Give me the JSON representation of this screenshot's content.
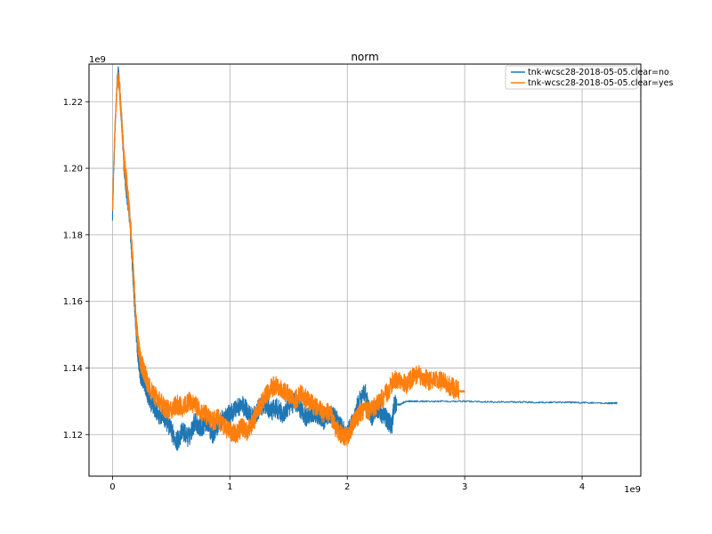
{
  "chart_data": {
    "type": "line",
    "title": "norm",
    "xlabel": "",
    "ylabel": "",
    "x_offset_label": "1e9",
    "y_offset_label": "1e9",
    "xlim": [
      -0.2,
      4.5
    ],
    "ylim": [
      1.1075,
      1.2313
    ],
    "x_ticks": [
      0,
      1,
      2,
      3,
      4
    ],
    "x_tick_labels": [
      "0",
      "1",
      "2",
      "3",
      "4"
    ],
    "y_ticks": [
      1.12,
      1.14,
      1.16,
      1.18,
      1.2,
      1.22
    ],
    "y_tick_labels": [
      "1.12",
      "1.14",
      "1.16",
      "1.18",
      "1.20",
      "1.22"
    ],
    "grid": true,
    "legend_position": "top-right",
    "series": [
      {
        "name": "tnk-wcsc28-2018-05-05.clear=no",
        "color": "#1f77b4",
        "x": [
          0.0,
          0.02,
          0.04,
          0.05,
          0.06,
          0.08,
          0.1,
          0.12,
          0.14,
          0.16,
          0.18,
          0.2,
          0.22,
          0.24,
          0.26,
          0.28,
          0.3,
          0.35,
          0.4,
          0.45,
          0.5,
          0.55,
          0.6,
          0.65,
          0.7,
          0.75,
          0.8,
          0.85,
          0.9,
          0.95,
          1.0,
          1.05,
          1.1,
          1.15,
          1.2,
          1.25,
          1.3,
          1.35,
          1.4,
          1.45,
          1.5,
          1.55,
          1.6,
          1.65,
          1.7,
          1.75,
          1.8,
          1.85,
          1.9,
          1.95,
          2.0,
          2.05,
          2.1,
          2.15,
          2.2,
          2.25,
          2.3,
          2.35,
          2.38,
          2.4,
          2.45,
          2.5,
          2.6,
          2.8,
          3.0,
          3.2,
          3.4,
          3.6,
          3.8,
          4.0,
          4.2,
          4.3
        ],
        "y": [
          1.186,
          1.21,
          1.226,
          1.229,
          1.225,
          1.213,
          1.2,
          1.193,
          1.188,
          1.178,
          1.165,
          1.152,
          1.143,
          1.138,
          1.137,
          1.135,
          1.132,
          1.128,
          1.126,
          1.125,
          1.121,
          1.118,
          1.121,
          1.119,
          1.124,
          1.122,
          1.124,
          1.12,
          1.123,
          1.125,
          1.126,
          1.128,
          1.129,
          1.127,
          1.125,
          1.128,
          1.129,
          1.127,
          1.128,
          1.126,
          1.128,
          1.13,
          1.128,
          1.125,
          1.127,
          1.126,
          1.124,
          1.126,
          1.125,
          1.122,
          1.12,
          1.124,
          1.13,
          1.133,
          1.125,
          1.128,
          1.126,
          1.124,
          1.123,
          1.129,
          1.129,
          1.13,
          1.13,
          1.13,
          1.13,
          1.1298,
          1.1298,
          1.1297,
          1.1297,
          1.1296,
          1.1294,
          1.1295
        ],
        "noise": 0.003
      },
      {
        "name": "tnk-wcsc28-2018-05-05.clear=yes",
        "color": "#ff7f0e",
        "x": [
          0.0,
          0.02,
          0.04,
          0.05,
          0.06,
          0.08,
          0.1,
          0.12,
          0.14,
          0.16,
          0.18,
          0.2,
          0.22,
          0.24,
          0.26,
          0.28,
          0.3,
          0.35,
          0.4,
          0.45,
          0.5,
          0.55,
          0.6,
          0.65,
          0.7,
          0.75,
          0.8,
          0.85,
          0.9,
          0.95,
          1.0,
          1.05,
          1.1,
          1.15,
          1.2,
          1.25,
          1.3,
          1.35,
          1.4,
          1.45,
          1.5,
          1.55,
          1.6,
          1.65,
          1.7,
          1.75,
          1.8,
          1.85,
          1.9,
          1.95,
          2.0,
          2.05,
          2.1,
          2.15,
          2.2,
          2.25,
          2.3,
          2.35,
          2.4,
          2.45,
          2.5,
          2.55,
          2.6,
          2.65,
          2.7,
          2.75,
          2.8,
          2.85,
          2.9,
          2.95,
          3.0
        ],
        "y": [
          1.188,
          1.212,
          1.225,
          1.227,
          1.224,
          1.213,
          1.202,
          1.196,
          1.189,
          1.18,
          1.168,
          1.155,
          1.147,
          1.142,
          1.14,
          1.138,
          1.135,
          1.132,
          1.13,
          1.128,
          1.127,
          1.129,
          1.128,
          1.13,
          1.129,
          1.127,
          1.126,
          1.124,
          1.125,
          1.122,
          1.121,
          1.12,
          1.122,
          1.121,
          1.124,
          1.128,
          1.131,
          1.134,
          1.135,
          1.133,
          1.132,
          1.13,
          1.132,
          1.131,
          1.129,
          1.128,
          1.126,
          1.127,
          1.122,
          1.12,
          1.119,
          1.123,
          1.126,
          1.128,
          1.127,
          1.129,
          1.131,
          1.133,
          1.137,
          1.136,
          1.135,
          1.137,
          1.138,
          1.137,
          1.136,
          1.136,
          1.136,
          1.135,
          1.134,
          1.133,
          1.133
        ],
        "noise": 0.003
      }
    ]
  }
}
